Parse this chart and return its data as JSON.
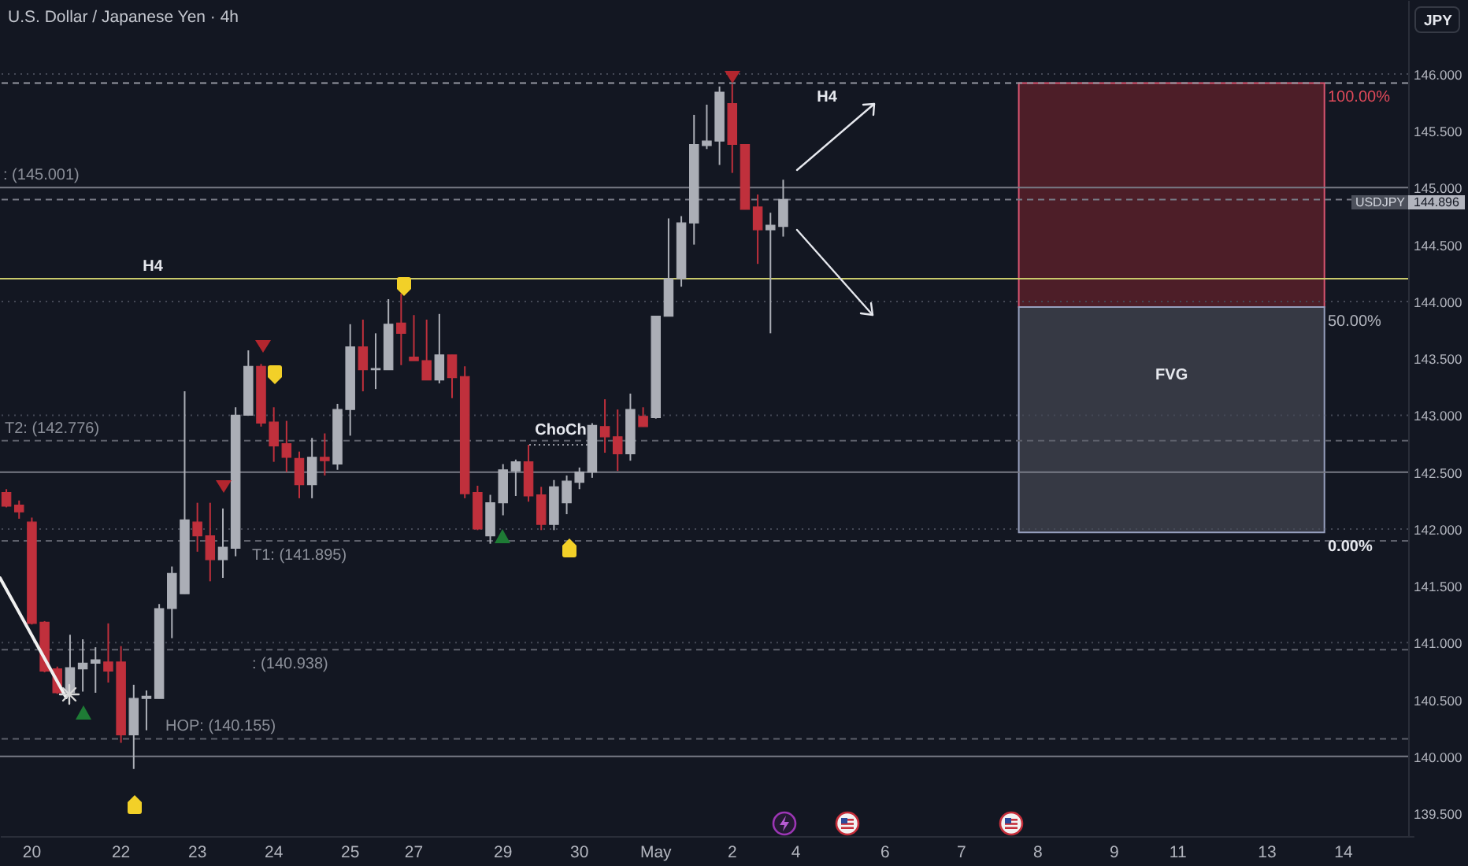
{
  "chart_data": {
    "type": "candlestick",
    "title": "U.S. Dollar / Japanese Yen · 4h",
    "ylabel": "JPY",
    "categories": [
      null,
      null,
      "20",
      null,
      null,
      null,
      null,
      null,
      null,
      "22",
      null,
      null,
      null,
      null,
      null,
      "23",
      null,
      null,
      null,
      null,
      null,
      "24",
      null,
      null,
      null,
      null,
      null,
      "25",
      null,
      null,
      null,
      null,
      "27",
      null,
      null,
      null,
      null,
      null,
      null,
      "29",
      null,
      null,
      null,
      null,
      null,
      "30",
      null,
      null,
      null,
      null,
      null,
      "May",
      null,
      null,
      null,
      null,
      null,
      "2",
      null,
      null,
      null,
      null,
      "4",
      null,
      null,
      null,
      null,
      null,
      null,
      "6",
      null,
      null,
      null,
      null,
      null,
      "7",
      null,
      null,
      null,
      null,
      null,
      "8",
      null,
      null,
      null,
      null,
      null,
      "9",
      null,
      null,
      null,
      null,
      "11",
      null,
      null,
      null,
      null,
      null,
      null,
      "13",
      null,
      null,
      null,
      null,
      null,
      "14",
      null,
      null,
      null,
      null,
      null
    ],
    "ohlc": [
      [
        142.32,
        142.35,
        142.19,
        142.2
      ],
      [
        142.21,
        142.25,
        142.09,
        142.15
      ],
      [
        142.06,
        142.1,
        141.16,
        141.17
      ],
      [
        141.18,
        141.19,
        140.74,
        140.75
      ],
      [
        140.77,
        140.79,
        140.55,
        140.56
      ],
      [
        140.56,
        141.07,
        140.53,
        140.78
      ],
      [
        140.77,
        141.03,
        140.57,
        140.82
      ],
      [
        140.82,
        140.96,
        140.56,
        140.85
      ],
      [
        140.83,
        141.17,
        140.65,
        140.75
      ],
      [
        140.83,
        140.97,
        140.12,
        140.19
      ],
      [
        140.19,
        140.63,
        139.89,
        140.51
      ],
      [
        140.51,
        140.58,
        140.23,
        140.53
      ],
      [
        140.51,
        141.34,
        140.51,
        141.3
      ],
      [
        141.3,
        141.67,
        141.04,
        141.61
      ],
      [
        141.43,
        143.21,
        141.43,
        142.08
      ],
      [
        142.06,
        142.23,
        141.8,
        141.94
      ],
      [
        141.94,
        142.23,
        141.54,
        141.73
      ],
      [
        141.73,
        142.18,
        141.57,
        141.84
      ],
      [
        141.83,
        143.07,
        141.76,
        143
      ],
      [
        143,
        143.57,
        143,
        143.43
      ],
      [
        143.43,
        143.45,
        142.9,
        142.93
      ],
      [
        142.94,
        143.07,
        142.59,
        142.73
      ],
      [
        142.75,
        142.95,
        142.5,
        142.63
      ],
      [
        142.62,
        142.68,
        142.27,
        142.39
      ],
      [
        142.39,
        142.8,
        142.27,
        142.63
      ],
      [
        142.63,
        142.84,
        142.47,
        142.6
      ],
      [
        142.57,
        143.1,
        142.52,
        143.05
      ],
      [
        143.05,
        143.8,
        142.82,
        143.6
      ],
      [
        143.6,
        143.84,
        143.21,
        143.4
      ],
      [
        143.4,
        143.72,
        143.23,
        143.41
      ],
      [
        143.4,
        144.02,
        143.4,
        143.8
      ],
      [
        143.81,
        144.07,
        143.44,
        143.72
      ],
      [
        143.51,
        143.88,
        143.48,
        143.48
      ],
      [
        143.48,
        143.84,
        143.31,
        143.31
      ],
      [
        143.31,
        143.89,
        143.28,
        143.53
      ],
      [
        143.53,
        143.53,
        143.15,
        143.33
      ],
      [
        143.34,
        143.43,
        142.27,
        142.31
      ],
      [
        142.32,
        142.38,
        141.99,
        142
      ],
      [
        141.94,
        142.3,
        141.87,
        142.23
      ],
      [
        142.23,
        142.57,
        142.12,
        142.52
      ],
      [
        142.51,
        142.61,
        142.29,
        142.59
      ],
      [
        142.59,
        142.74,
        142.24,
        142.29
      ],
      [
        142.3,
        142.37,
        141.99,
        142.04
      ],
      [
        142.04,
        142.43,
        141.99,
        142.37
      ],
      [
        142.23,
        142.47,
        142.13,
        142.42
      ],
      [
        142.41,
        142.54,
        142.35,
        142.5
      ],
      [
        142.5,
        142.93,
        142.45,
        142.91
      ],
      [
        142.9,
        143.14,
        142.67,
        142.81
      ],
      [
        142.81,
        143.05,
        142.51,
        142.66
      ],
      [
        142.66,
        143.19,
        142.6,
        143.05
      ],
      [
        142.99,
        143.07,
        142.9,
        142.9
      ],
      [
        142.98,
        143.87,
        142.97,
        143.87
      ],
      [
        143.87,
        144.73,
        143.87,
        144.2
      ],
      [
        144.2,
        144.75,
        144.13,
        144.69
      ],
      [
        144.69,
        145.64,
        144.5,
        145.38
      ],
      [
        145.37,
        145.73,
        145.34,
        145.41
      ],
      [
        145.41,
        145.89,
        145.2,
        145.84
      ],
      [
        145.74,
        145.91,
        145.13,
        145.38
      ],
      [
        145.38,
        145.38,
        144.81,
        144.81
      ],
      [
        144.83,
        144.94,
        144.33,
        144.63
      ],
      [
        144.63,
        144.78,
        143.72,
        144.67
      ],
      [
        144.66,
        145.07,
        144.57,
        144.896
      ],
      null,
      null,
      null,
      null,
      null,
      null,
      null,
      null,
      null,
      null,
      null,
      null,
      null,
      null,
      null,
      null,
      null,
      null,
      null,
      null,
      null,
      null,
      null,
      null,
      null,
      null,
      null,
      null,
      null,
      null,
      null,
      null,
      null,
      null,
      null,
      null,
      null,
      null,
      null,
      null,
      null,
      null,
      null,
      null,
      null,
      null,
      null,
      null,
      null
    ],
    "colors": [
      "#c0303c",
      "#c0303c",
      "#c0303c",
      "#c0303c",
      "#c0303c",
      "#abaeb6",
      "#abaeb6",
      "#abaeb6",
      "#c0303c",
      "#c0303c",
      "#abaeb6",
      "#abaeb6",
      "#abaeb6",
      "#abaeb6",
      "#abaeb6",
      "#c0303c",
      "#c0303c",
      "#abaeb6",
      "#abaeb6",
      "#abaeb6",
      "#c0303c",
      "#c0303c",
      "#c0303c",
      "#c0303c",
      "#abaeb6",
      "#c0303c",
      "#abaeb6",
      "#abaeb6",
      "#c0303c",
      "#abaeb6",
      "#abaeb6",
      "#c0303c",
      "#c0303c",
      "#c0303c",
      "#abaeb6",
      "#c0303c",
      "#c0303c",
      "#c0303c",
      "#abaeb6",
      "#abaeb6",
      "#abaeb6",
      "#c0303c",
      "#c0303c",
      "#abaeb6",
      "#abaeb6",
      "#abaeb6",
      "#abaeb6",
      "#c0303c",
      "#c0303c",
      "#abaeb6",
      "#c0303c",
      "#abaeb6",
      "#abaeb6",
      "#abaeb6",
      "#abaeb6",
      "#abaeb6",
      "#abaeb6",
      "#c0303c",
      "#c0303c",
      "#c0303c",
      "#abaeb6",
      "#abaeb6",
      null,
      null,
      null,
      null,
      null,
      null,
      null,
      null,
      null,
      null,
      null,
      null,
      null,
      null,
      null,
      null,
      null,
      null,
      null,
      null,
      null,
      null,
      null,
      null,
      null,
      null,
      null,
      null,
      null,
      null,
      null,
      null,
      null,
      null,
      null,
      null,
      null,
      null,
      null,
      null,
      null,
      null,
      null,
      null,
      null,
      null,
      null,
      null,
      null
    ],
    "ylim": [
      139.3,
      146.65
    ],
    "yticks": [
      {
        "value": 139.5,
        "label": "139.500"
      },
      {
        "value": 140,
        "label": "140.000"
      },
      {
        "value": 140.5,
        "label": "140.500"
      },
      {
        "value": 141,
        "label": "141.000"
      },
      {
        "value": 141.5,
        "label": "141.500"
      },
      {
        "value": 142,
        "label": "142.000"
      },
      {
        "value": 142.5,
        "label": "142.500"
      },
      {
        "value": 143,
        "label": "143.000"
      },
      {
        "value": 143.5,
        "label": "143.500"
      },
      {
        "value": 144,
        "label": "144.000"
      },
      {
        "value": 144.5,
        "label": "144.500"
      },
      {
        "value": 145,
        "label": "145.000"
      },
      {
        "value": 145.5,
        "label": "145.500"
      },
      {
        "value": 146,
        "label": "146.000"
      }
    ],
    "ref_lines": [
      {
        "axis": "y",
        "value": 145.001,
        "label": ": (145.001)",
        "color": "#787b86",
        "line_style": "solid"
      },
      {
        "axis": "y",
        "value": 144.896,
        "label": "USDJPY",
        "color": "#787b86",
        "line_style": "dashed"
      },
      {
        "axis": "y",
        "value": 144.2,
        "label": "H4",
        "color": "#c9c96b",
        "line_style": "solid"
      },
      {
        "axis": "y",
        "value": 145.92,
        "label": "H4",
        "color": "#9598a1",
        "line_style": "dashed"
      },
      {
        "axis": "y",
        "value": 142.5,
        "color": "#787b86",
        "line_style": "solid"
      },
      {
        "axis": "y",
        "value": 140,
        "color": "#787b86",
        "line_style": "solid"
      },
      {
        "axis": "y",
        "value": 142.776,
        "label": "T2: (142.776)",
        "color": "#5d606b",
        "line_style": "dashed"
      },
      {
        "axis": "y",
        "value": 141.895,
        "label": "T1: (141.895)",
        "color": "#5d606b",
        "line_style": "dashed"
      },
      {
        "axis": "y",
        "value": 140.155,
        "label": "HOP: (140.155)",
        "color": "#5d606b",
        "line_style": "dashed"
      },
      {
        "axis": "y",
        "value": 140.938,
        "label": ": (140.938)",
        "color": "#5d606b",
        "line_style": "dashed"
      },
      {
        "axis": "y",
        "value": 146,
        "color": "#454956",
        "line_style": "dotted"
      },
      {
        "axis": "y",
        "value": 144,
        "color": "#454956",
        "line_style": "dotted"
      },
      {
        "axis": "y",
        "value": 143,
        "color": "#454956",
        "line_style": "dotted"
      },
      {
        "axis": "y",
        "value": 142,
        "color": "#454956",
        "line_style": "dotted"
      },
      {
        "axis": "y",
        "value": 141,
        "color": "#454956",
        "line_style": "dotted"
      }
    ],
    "bands": [
      {
        "axis": "y",
        "from": 143.95,
        "to": 145.92,
        "color": "#4d1e28"
      },
      {
        "axis": "y",
        "from": 141.97,
        "to": 143.95,
        "label": "FVG",
        "color": "#363944"
      }
    ],
    "annotations": [
      {
        "text": "ChoCh",
        "y": 142.745
      },
      {
        "text": "100.00%",
        "y": 145.92
      },
      {
        "text": "50.00%",
        "y": 143.95
      },
      {
        "text": "0.00%",
        "y": 141.97
      },
      "144.896"
    ]
  }
}
